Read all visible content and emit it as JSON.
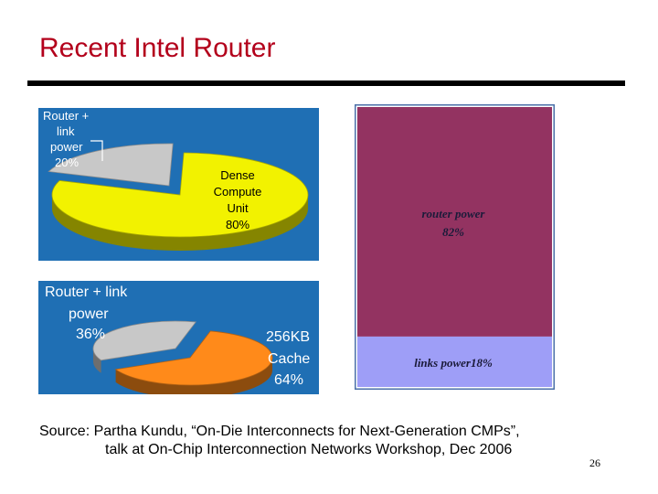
{
  "slide": {
    "title": "Recent Intel Router",
    "source_line1": "Source: Partha Kundu, “On-Die Interconnects for Next-Generation CMPs”,",
    "source_line2": "talk at On-Chip Interconnection Networks Workshop, Dec 2006",
    "page_number": "26"
  },
  "colors": {
    "title": "#b3001b",
    "panel_bg": "#1f6fb4",
    "yellow_slice": "#f2f200",
    "gray_slice": "#c8c8c8",
    "orange_slice": "#ff8a1a",
    "router_power": "#933361",
    "links_power": "#9e9ef7"
  },
  "chart_data": [
    {
      "type": "pie",
      "slices": [
        {
          "label": "Dense Compute Unit 80%",
          "value": 80
        },
        {
          "label": "Router + link power 20%",
          "value": 20
        }
      ]
    },
    {
      "type": "pie",
      "slices": [
        {
          "label": "256KB Cache 64%",
          "value": 64
        },
        {
          "label": "Router + link power 36%",
          "value": 36
        }
      ]
    },
    {
      "type": "bar",
      "stacked": true,
      "segments": [
        {
          "label": "router power",
          "value_label": "82%",
          "value": 82
        },
        {
          "label": "links power",
          "value_label": "18%",
          "value": 18
        }
      ]
    }
  ]
}
